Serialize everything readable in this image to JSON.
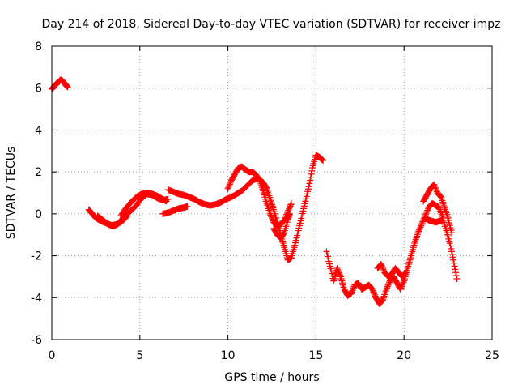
{
  "chart_data": {
    "type": "scatter",
    "title": "Day 214 of 2018, Sidereal Day-to-day VTEC variation (SDTVAR) for receiver impz",
    "xlabel": "GPS time / hours",
    "ylabel": "SDTVAR / TECUs",
    "xlim": [
      0,
      25
    ],
    "ylim": [
      -6,
      8
    ],
    "xticks": [
      0,
      5,
      10,
      15,
      20,
      25
    ],
    "yticks": [
      -6,
      -4,
      -2,
      0,
      2,
      4,
      6,
      8
    ],
    "xtick_labels": [
      "0",
      "5",
      "10",
      "15",
      "20",
      "25"
    ],
    "ytick_labels": [
      "-6",
      "-4",
      "-2",
      "0",
      "2",
      "4",
      "6",
      "8"
    ],
    "grid": true,
    "marker": "+",
    "color": "#ff0000",
    "series": [
      {
        "points": [
          [
            0.0,
            5.95
          ],
          [
            0.1,
            6.05
          ],
          [
            0.2,
            6.15
          ],
          [
            0.3,
            6.25
          ],
          [
            0.4,
            6.3
          ],
          [
            0.5,
            6.4
          ],
          [
            0.6,
            6.35
          ],
          [
            0.7,
            6.25
          ],
          [
            0.8,
            6.15
          ],
          [
            0.9,
            6.05
          ]
        ]
      },
      {
        "points": [
          [
            2.1,
            0.2
          ],
          [
            2.3,
            0.0
          ],
          [
            2.5,
            -0.2
          ],
          [
            2.8,
            -0.35
          ],
          [
            3.1,
            -0.45
          ],
          [
            3.4,
            -0.55
          ],
          [
            3.7,
            -0.5
          ],
          [
            4.0,
            -0.35
          ],
          [
            4.3,
            -0.1
          ]
        ]
      },
      {
        "points": [
          [
            2.6,
            -0.1
          ],
          [
            2.9,
            -0.3
          ],
          [
            3.2,
            -0.5
          ],
          [
            3.5,
            -0.6
          ],
          [
            3.8,
            -0.45
          ],
          [
            4.0,
            -0.25
          ],
          [
            4.2,
            -0.05
          ],
          [
            4.5,
            0.15
          ],
          [
            4.8,
            0.4
          ],
          [
            5.1,
            0.75
          ],
          [
            5.4,
            0.95
          ],
          [
            5.7,
            0.9
          ],
          [
            6.0,
            0.75
          ],
          [
            6.3,
            0.65
          ],
          [
            6.6,
            0.7
          ]
        ]
      },
      {
        "points": [
          [
            3.9,
            -0.1
          ],
          [
            4.2,
            0.25
          ],
          [
            4.5,
            0.55
          ],
          [
            4.8,
            0.8
          ],
          [
            5.1,
            0.95
          ],
          [
            5.4,
            1.0
          ],
          [
            5.7,
            0.95
          ],
          [
            6.0,
            0.85
          ],
          [
            6.3,
            0.7
          ],
          [
            6.5,
            0.6
          ]
        ]
      },
      {
        "points": [
          [
            6.3,
            0.0
          ],
          [
            6.6,
            0.05
          ],
          [
            6.9,
            0.15
          ],
          [
            7.2,
            0.25
          ],
          [
            7.5,
            0.3
          ],
          [
            7.7,
            0.35
          ]
        ]
      },
      {
        "points": [
          [
            6.6,
            1.15
          ],
          [
            6.9,
            1.05
          ],
          [
            7.2,
            0.95
          ],
          [
            7.5,
            0.9
          ],
          [
            7.8,
            0.8
          ],
          [
            8.1,
            0.7
          ],
          [
            8.4,
            0.55
          ],
          [
            8.7,
            0.45
          ],
          [
            9.0,
            0.4
          ],
          [
            9.3,
            0.45
          ],
          [
            9.6,
            0.55
          ],
          [
            9.9,
            0.7
          ],
          [
            10.2,
            0.8
          ],
          [
            10.5,
            0.95
          ],
          [
            10.8,
            1.1
          ],
          [
            11.1,
            1.35
          ],
          [
            11.4,
            1.6
          ],
          [
            11.7,
            1.7
          ],
          [
            12.0,
            1.5
          ],
          [
            12.2,
            1.2
          ],
          [
            12.4,
            0.7
          ],
          [
            12.6,
            0.2
          ],
          [
            12.8,
            -0.4
          ],
          [
            13.0,
            -1.0
          ],
          [
            13.2,
            -1.6
          ],
          [
            13.4,
            -2.2
          ],
          [
            13.6,
            -2.1
          ],
          [
            13.8,
            -1.5
          ],
          [
            14.0,
            -0.8
          ],
          [
            14.2,
            -0.1
          ],
          [
            14.4,
            0.6
          ],
          [
            14.6,
            1.3
          ],
          [
            14.8,
            2.2
          ],
          [
            15.0,
            2.8
          ],
          [
            15.2,
            2.7
          ],
          [
            15.4,
            2.55
          ]
        ]
      },
      {
        "points": [
          [
            10.0,
            1.2
          ],
          [
            10.2,
            1.6
          ],
          [
            10.4,
            1.9
          ],
          [
            10.6,
            2.2
          ],
          [
            10.8,
            2.25
          ],
          [
            11.0,
            2.1
          ],
          [
            11.2,
            2.0
          ],
          [
            11.4,
            2.0
          ],
          [
            11.6,
            1.85
          ],
          [
            11.8,
            1.6
          ],
          [
            12.0,
            1.1
          ],
          [
            12.2,
            0.5
          ],
          [
            12.4,
            0.0
          ],
          [
            12.6,
            -0.4
          ],
          [
            12.8,
            -0.6
          ],
          [
            13.0,
            -0.5
          ],
          [
            13.2,
            -0.3
          ],
          [
            13.4,
            0.1
          ],
          [
            13.6,
            0.5
          ]
        ]
      },
      {
        "points": [
          [
            12.6,
            -0.7
          ],
          [
            12.8,
            -1.0
          ],
          [
            13.0,
            -1.15
          ],
          [
            13.2,
            -0.9
          ],
          [
            13.4,
            -0.3
          ],
          [
            13.5,
            0.0
          ]
        ]
      },
      {
        "points": [
          [
            15.6,
            -1.8
          ],
          [
            15.8,
            -2.5
          ],
          [
            16.0,
            -3.2
          ],
          [
            16.2,
            -2.6
          ],
          [
            16.4,
            -3.0
          ],
          [
            16.6,
            -3.6
          ],
          [
            16.8,
            -3.9
          ],
          [
            17.0,
            -3.8
          ],
          [
            17.2,
            -3.4
          ],
          [
            17.4,
            -3.3
          ],
          [
            17.6,
            -3.6
          ],
          [
            17.8,
            -3.5
          ],
          [
            18.0,
            -3.4
          ],
          [
            18.2,
            -3.6
          ],
          [
            18.4,
            -4.0
          ],
          [
            18.6,
            -4.3
          ],
          [
            18.8,
            -4.1
          ],
          [
            19.0,
            -3.6
          ],
          [
            19.2,
            -3.2
          ],
          [
            19.4,
            -3.0
          ],
          [
            19.6,
            -3.3
          ],
          [
            19.8,
            -3.6
          ],
          [
            20.0,
            -3.2
          ],
          [
            20.2,
            -2.6
          ],
          [
            20.4,
            -2.0
          ],
          [
            20.6,
            -1.4
          ],
          [
            20.8,
            -0.9
          ],
          [
            21.0,
            -0.5
          ],
          [
            21.2,
            -0.1
          ],
          [
            21.4,
            0.3
          ],
          [
            21.6,
            0.5
          ],
          [
            21.8,
            0.4
          ],
          [
            22.0,
            0.3
          ],
          [
            22.2,
            -0.2
          ],
          [
            22.4,
            -0.8
          ],
          [
            22.6,
            -1.4
          ],
          [
            22.8,
            -2.2
          ],
          [
            23.0,
            -3.1
          ]
        ]
      },
      {
        "points": [
          [
            18.5,
            -2.6
          ],
          [
            18.7,
            -2.4
          ],
          [
            18.9,
            -2.8
          ],
          [
            19.1,
            -3.0
          ],
          [
            19.3,
            -2.9
          ],
          [
            19.5,
            -2.6
          ],
          [
            19.7,
            -2.8
          ],
          [
            19.9,
            -3.0
          ],
          [
            20.1,
            -2.8
          ]
        ]
      },
      {
        "points": [
          [
            21.1,
            0.6
          ],
          [
            21.3,
            0.9
          ],
          [
            21.5,
            1.2
          ],
          [
            21.7,
            1.4
          ],
          [
            21.9,
            1.0
          ],
          [
            22.1,
            0.8
          ],
          [
            22.3,
            0.3
          ],
          [
            22.5,
            -0.2
          ],
          [
            22.7,
            -0.9
          ]
        ]
      },
      {
        "points": [
          [
            21.2,
            -0.2
          ],
          [
            21.4,
            -0.3
          ],
          [
            21.6,
            -0.35
          ],
          [
            21.8,
            -0.4
          ],
          [
            22.0,
            -0.35
          ],
          [
            22.2,
            -0.3
          ]
        ]
      }
    ]
  }
}
